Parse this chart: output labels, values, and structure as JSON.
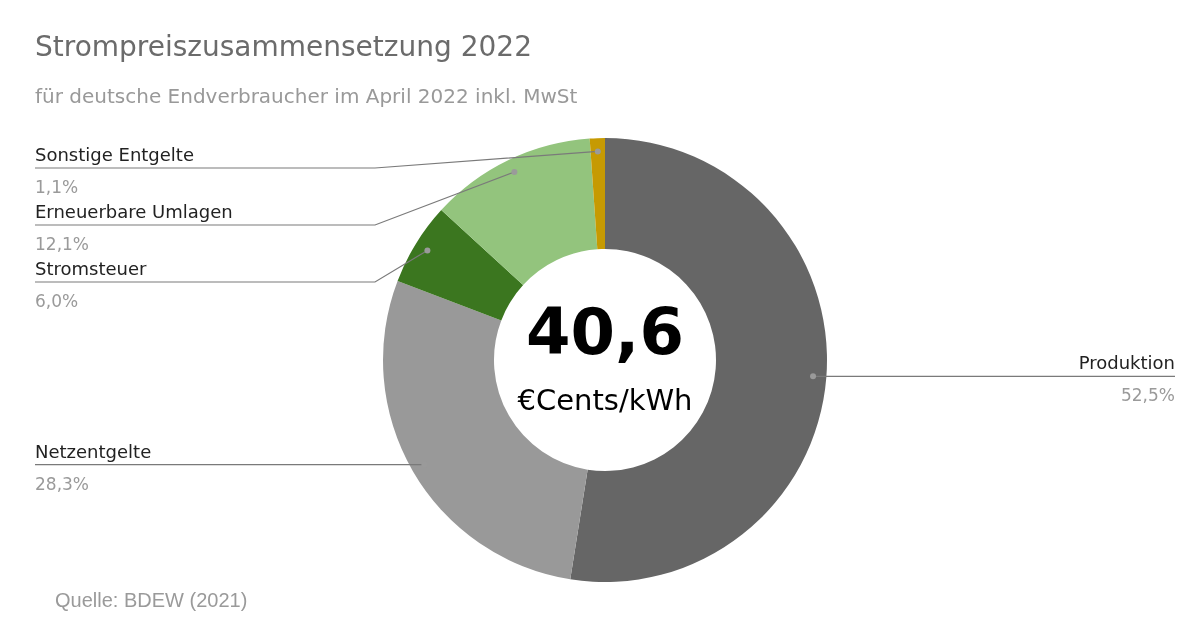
{
  "chart_data": {
    "type": "donut",
    "title": "Strompreiszusammensetzung 2022",
    "subtitle": "für deutsche Endverbraucher im April 2022 inkl. MwSt",
    "categories": [
      "Produktion",
      "Netzentgelte",
      "Stromsteuer",
      "Erneuerbare Umlagen",
      "Sonstige Entgelte"
    ],
    "values": [
      52.5,
      28.3,
      6.0,
      12.1,
      1.1
    ],
    "value_labels": [
      "52,5%",
      "28,3%",
      "6,0%",
      "12,1%",
      "1,1%"
    ],
    "colors": [
      "#666666",
      "#999999",
      "#3b761f",
      "#93c47d",
      "#c69a02"
    ],
    "legend": false,
    "annotations": [
      "40,6",
      "€Cents/kWh",
      "Quelle: BDEW (2021)"
    ]
  }
}
